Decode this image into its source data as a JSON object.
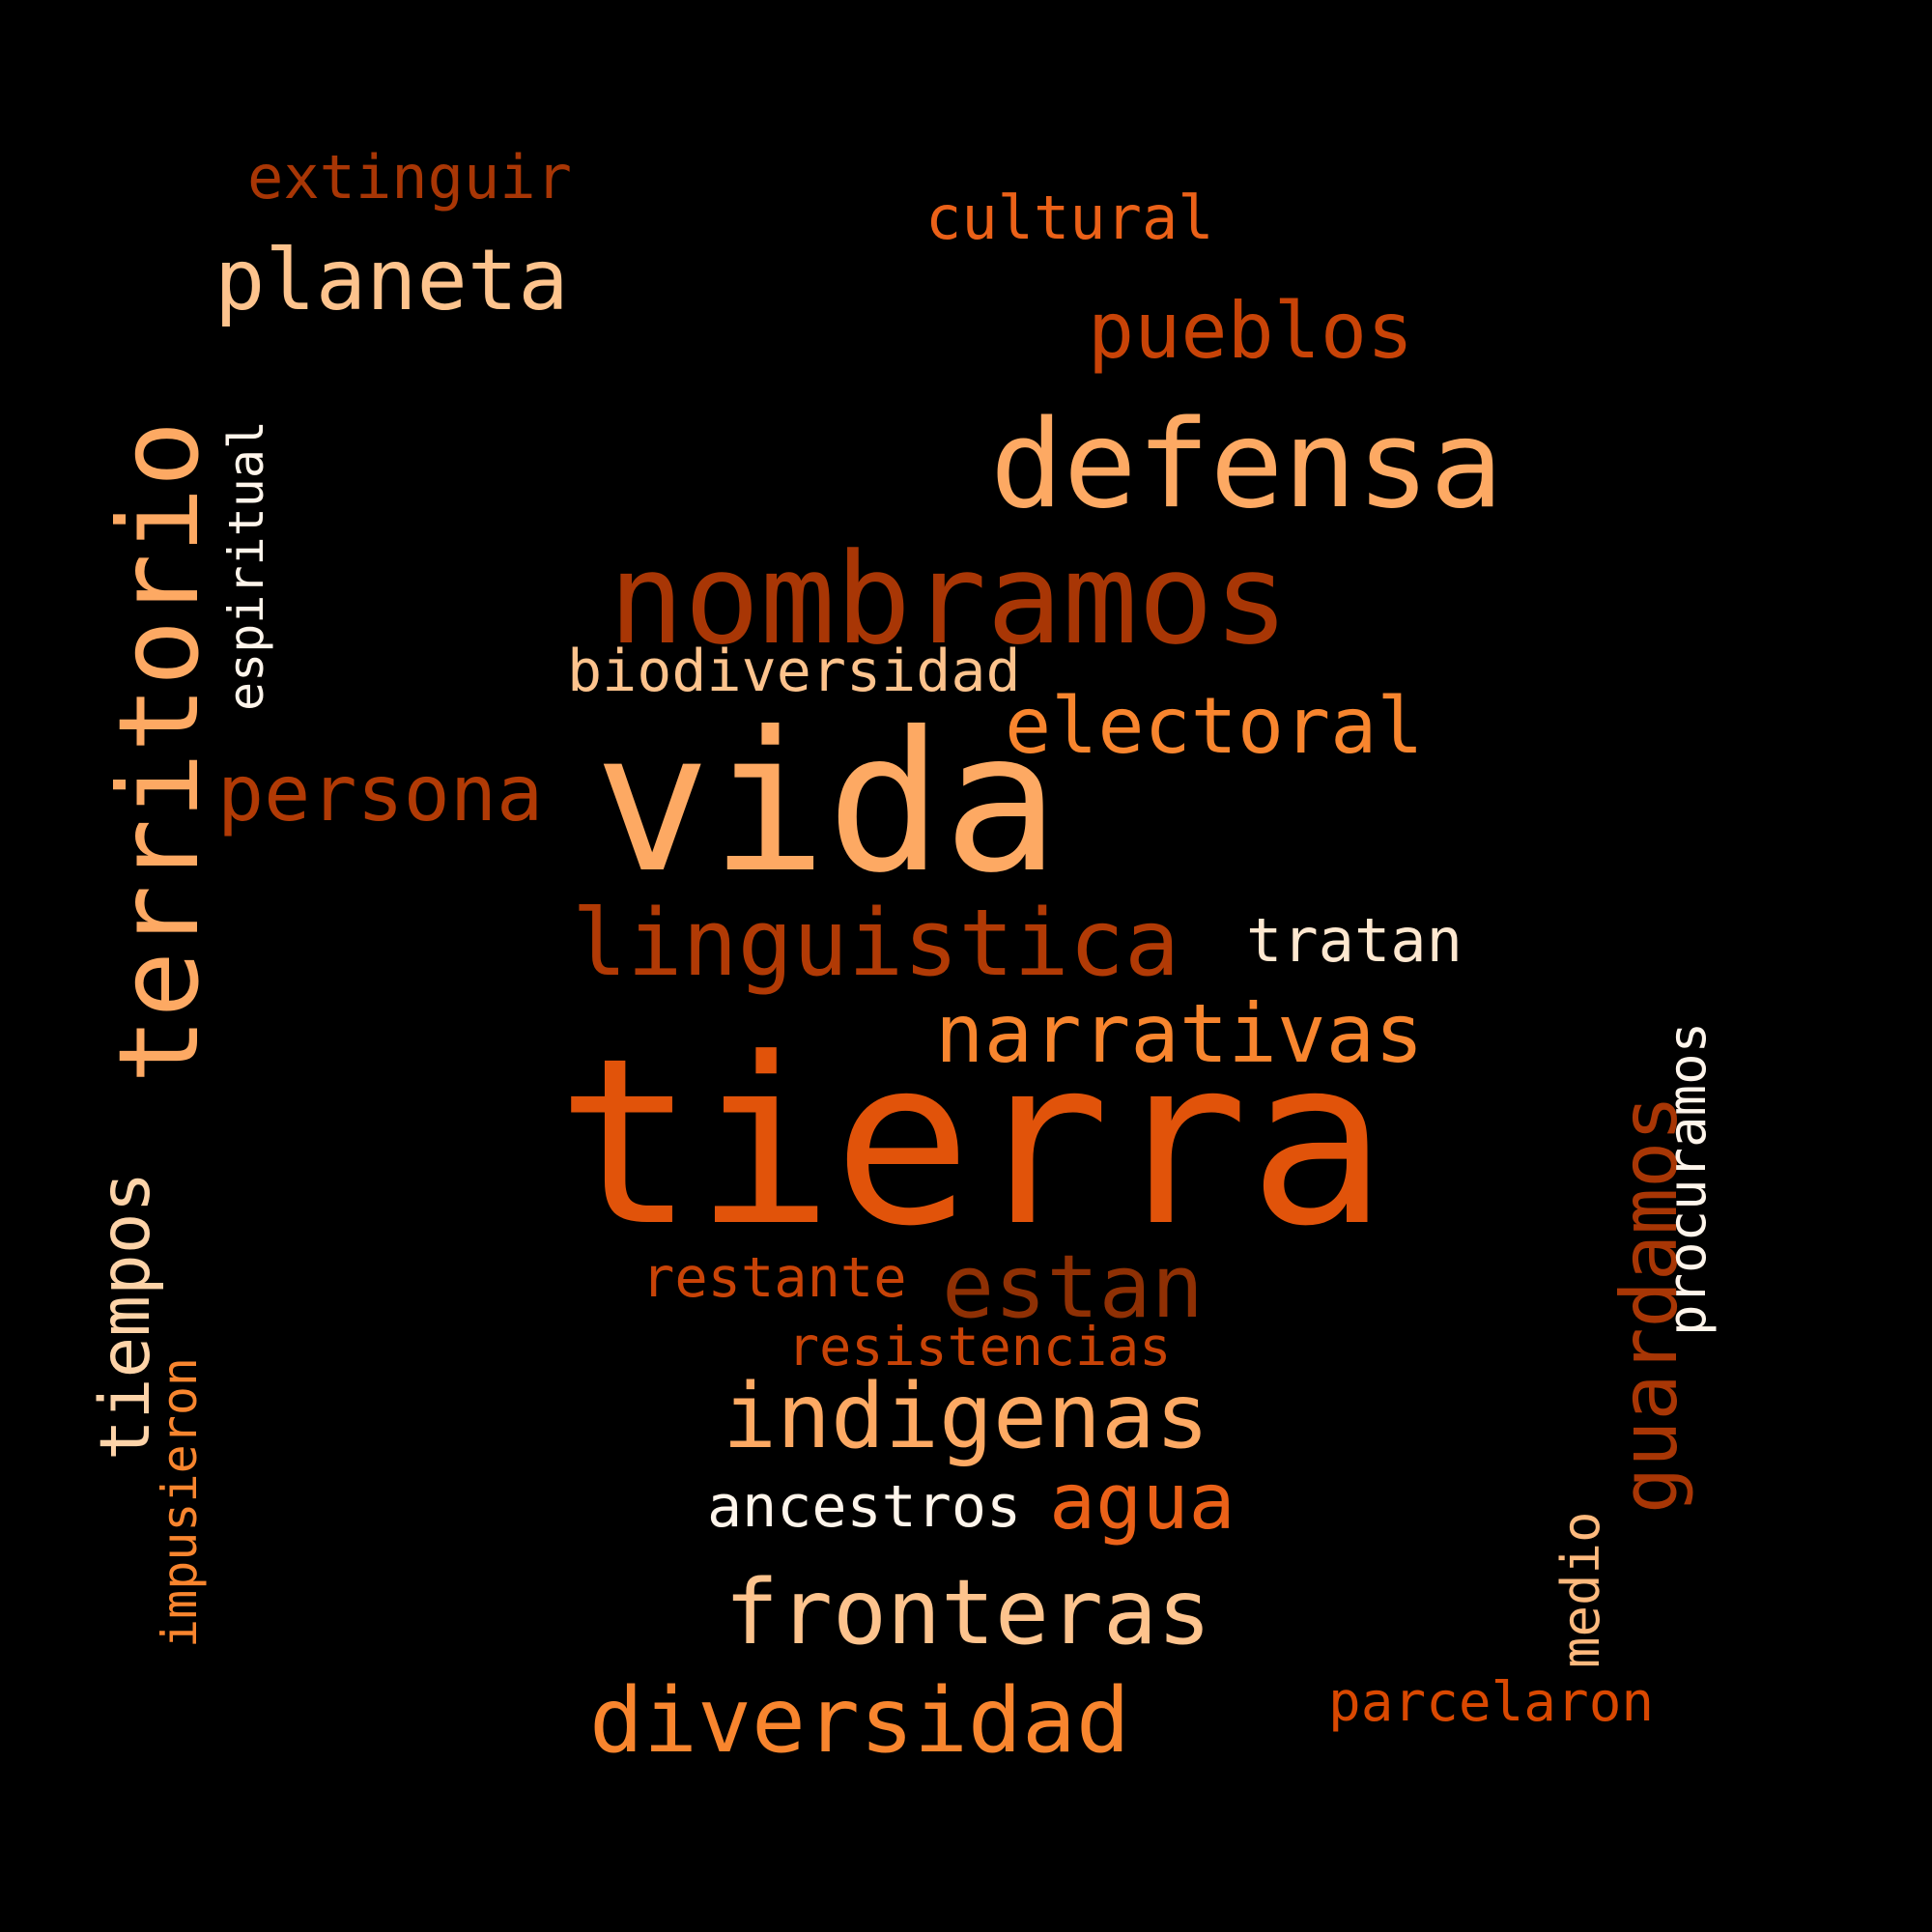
{
  "words": {
    "tierra": {
      "text": "tierra",
      "color": "#E1530A"
    },
    "vida": {
      "text": "vida",
      "color": "#FDA963"
    },
    "nombramos": {
      "text": "nombramos",
      "color": "#A83605"
    },
    "defensa": {
      "text": "defensa",
      "color": "#FDA963"
    },
    "territorio": {
      "text": "territorio",
      "color": "#FDA963"
    },
    "linguistica": {
      "text": "linguistica",
      "color": "#B13A05"
    },
    "narrativas": {
      "text": "narrativas",
      "color": "#F8852E"
    },
    "indigenas": {
      "text": "indigenas",
      "color": "#FDA963"
    },
    "fronteras": {
      "text": "fronteras",
      "color": "#FDC38D"
    },
    "diversidad": {
      "text": "diversidad",
      "color": "#F8852E"
    },
    "estan": {
      "text": "estan",
      "color": "#8F3004"
    },
    "electoral": {
      "text": "electoral",
      "color": "#F8852E"
    },
    "persona": {
      "text": "persona",
      "color": "#B13A05"
    },
    "planeta": {
      "text": "planeta",
      "color": "#FDC38D"
    },
    "pueblos": {
      "text": "pueblos",
      "color": "#C84307"
    },
    "agua": {
      "text": "agua",
      "color": "#EB6118"
    },
    "guardamos": {
      "text": "guardamos",
      "color": "#A83605"
    },
    "tiempos": {
      "text": "tiempos",
      "color": "#FDD3A8"
    },
    "procuramos": {
      "text": "procuramos",
      "color": "#FFF5EB"
    },
    "espiritual": {
      "text": "espiritual",
      "color": "#FFF5EB"
    },
    "tratan": {
      "text": "tratan",
      "color": "#FEE7CF"
    },
    "cultural": {
      "text": "cultural",
      "color": "#EB6118"
    },
    "extinguir": {
      "text": "extinguir",
      "color": "#A83605"
    },
    "biodiversidad": {
      "text": "biodiversidad",
      "color": "#FDC38D"
    },
    "ancestros": {
      "text": "ancestros",
      "color": "#FFF5EB"
    },
    "restante": {
      "text": "restante",
      "color": "#C84307"
    },
    "resistencias": {
      "text": "resistencias",
      "color": "#C84307"
    },
    "impusieron": {
      "text": "impusieron",
      "color": "#F8852E"
    },
    "medio": {
      "text": "medio",
      "color": "#FDB97D"
    },
    "parcelaron": {
      "text": "parcelaron",
      "color": "#D94801"
    }
  }
}
